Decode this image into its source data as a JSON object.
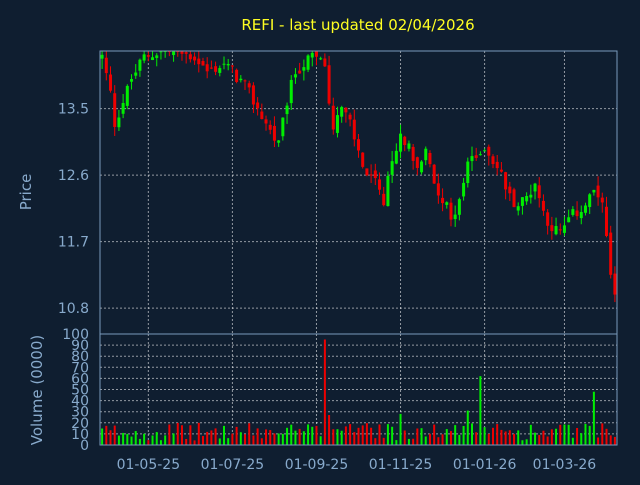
{
  "chart_data": {
    "type": "candlestick",
    "title": "REFI - last updated 02/04/2026",
    "price_panel": {
      "ylabel": "Price",
      "yticks": [
        "13.5",
        "12.6",
        "11.7",
        "10.8"
      ],
      "ytick_values": [
        13.5,
        12.6,
        11.7,
        10.8
      ],
      "ylim": [
        10.45,
        14.28
      ],
      "grid": true
    },
    "volume_panel": {
      "ylabel": "Volume (0000)",
      "yticks": [
        "0",
        "10",
        "20",
        "30",
        "40",
        "50",
        "60",
        "70",
        "80",
        "90",
        "100"
      ],
      "ytick_values": [
        0,
        10,
        20,
        30,
        40,
        50,
        60,
        70,
        80,
        90,
        100
      ],
      "ylim": [
        0,
        100
      ],
      "grid": true
    },
    "xtick_labels": [
      "01-05-25",
      "01-07-25",
      "01-09-25",
      "01-11-25",
      "01-01-26",
      "01-03-26"
    ],
    "xtick_positions": [
      11,
      31,
      51,
      71,
      91,
      110
    ],
    "trading_days": 123,
    "close_path": [
      [
        0,
        14.2
      ],
      [
        2,
        13.7
      ],
      [
        3,
        13.3
      ],
      [
        5,
        13.6
      ],
      [
        7,
        13.9
      ],
      [
        10,
        14.2
      ],
      [
        15,
        14.3
      ],
      [
        22,
        14.2
      ],
      [
        25,
        14.0
      ],
      [
        29,
        14.1
      ],
      [
        31,
        14.0
      ],
      [
        34,
        13.8
      ],
      [
        37,
        13.5
      ],
      [
        40,
        13.2
      ],
      [
        42,
        13.0
      ],
      [
        44,
        13.6
      ],
      [
        46,
        14.0
      ],
      [
        50,
        14.2
      ],
      [
        53,
        14.1
      ],
      [
        54,
        13.6
      ],
      [
        55,
        13.3
      ],
      [
        57,
        13.5
      ],
      [
        59,
        13.3
      ],
      [
        61,
        12.9
      ],
      [
        63,
        12.6
      ],
      [
        65,
        12.5
      ],
      [
        67,
        12.2
      ],
      [
        69,
        12.8
      ],
      [
        71,
        13.1
      ],
      [
        73,
        13.0
      ],
      [
        75,
        12.7
      ],
      [
        77,
        12.9
      ],
      [
        79,
        12.5
      ],
      [
        81,
        12.3
      ],
      [
        83,
        12.0
      ],
      [
        85,
        12.3
      ],
      [
        87,
        12.7
      ],
      [
        89,
        12.9
      ],
      [
        91,
        13.0
      ],
      [
        93,
        12.8
      ],
      [
        95,
        12.6
      ],
      [
        97,
        12.3
      ],
      [
        99,
        12.2
      ],
      [
        101,
        12.3
      ],
      [
        103,
        12.5
      ],
      [
        105,
        12.1
      ],
      [
        107,
        11.9
      ],
      [
        109,
        11.8
      ],
      [
        111,
        12.0
      ],
      [
        113,
        12.1
      ],
      [
        115,
        12.2
      ],
      [
        117,
        12.4
      ],
      [
        119,
        12.2
      ],
      [
        121,
        11.2
      ],
      [
        122,
        10.9
      ]
    ],
    "volume_spikes": [
      [
        53,
        95
      ],
      [
        90,
        62
      ],
      [
        71,
        28
      ],
      [
        54,
        27
      ],
      [
        87,
        31
      ],
      [
        117,
        48
      ]
    ],
    "colors": {
      "up": "#00ee00",
      "down": "#ee0000",
      "grid": "#ffffff",
      "axis": "#7a9abb",
      "text": "#88aacc",
      "title": "#ffff22",
      "background": "#0f1e30"
    }
  }
}
